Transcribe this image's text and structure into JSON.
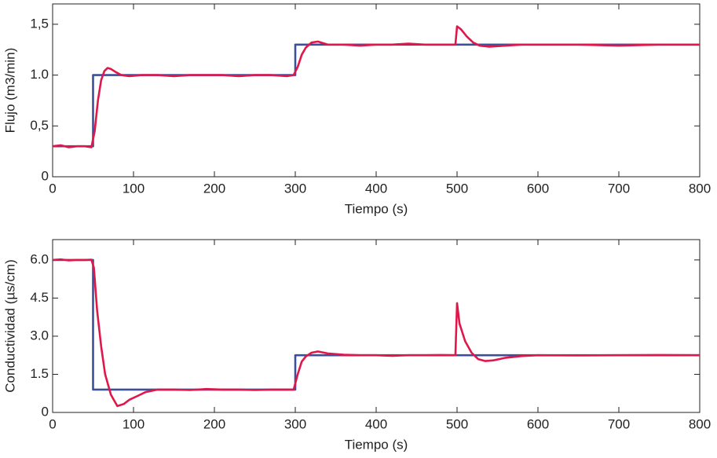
{
  "chart_data": [
    {
      "type": "line",
      "x_label": "Tiempo (s)",
      "y_label": "Flujo (m3/min)",
      "xlim": [
        0,
        800
      ],
      "ylim": [
        0,
        1.7
      ],
      "xticks": [
        0,
        100,
        200,
        300,
        400,
        500,
        600,
        700,
        800
      ],
      "yticks": [
        0,
        {
          "value": 0.5,
          "label": "0,5"
        },
        {
          "value": 1,
          "label": "1.0"
        },
        {
          "value": 1.5,
          "label": "1,5"
        }
      ],
      "series": [
        {
          "color": "#3c4f9a",
          "x": [
            0,
            50,
            50,
            300,
            300,
            800
          ],
          "values": [
            0.3,
            0.3,
            1.0,
            1.0,
            1.3,
            1.3
          ]
        },
        {
          "color": "#e0174a",
          "x": [
            0,
            10,
            20,
            30,
            40,
            48,
            52,
            56,
            60,
            64,
            68,
            72,
            78,
            85,
            95,
            110,
            130,
            150,
            170,
            190,
            210,
            230,
            250,
            270,
            290,
            298,
            303,
            308,
            313,
            320,
            328,
            340,
            360,
            380,
            400,
            420,
            440,
            460,
            480,
            498,
            500,
            505,
            512,
            520,
            528,
            540,
            560,
            580,
            600,
            650,
            700,
            750,
            800
          ],
          "values": [
            0.3,
            0.31,
            0.29,
            0.3,
            0.3,
            0.29,
            0.45,
            0.75,
            0.95,
            1.04,
            1.07,
            1.06,
            1.03,
            1.0,
            0.99,
            1.0,
            1.0,
            0.99,
            1.0,
            1.0,
            1.0,
            0.99,
            1.0,
            1.0,
            0.99,
            1.0,
            1.08,
            1.2,
            1.27,
            1.32,
            1.33,
            1.3,
            1.3,
            1.29,
            1.3,
            1.3,
            1.31,
            1.3,
            1.3,
            1.3,
            1.48,
            1.45,
            1.38,
            1.32,
            1.29,
            1.28,
            1.29,
            1.3,
            1.3,
            1.3,
            1.29,
            1.3,
            1.3
          ]
        }
      ]
    },
    {
      "type": "line",
      "x_label": "Tiempo (s)",
      "y_label": "Conductividad (µs/cm)",
      "xlim": [
        0,
        800
      ],
      "ylim": [
        0,
        6.8
      ],
      "xticks": [
        0,
        100,
        200,
        300,
        400,
        500,
        600,
        700,
        800
      ],
      "yticks": [
        0,
        1.5,
        {
          "value": 3,
          "label": "3.0"
        },
        4.5,
        {
          "value": 6,
          "label": "6.0"
        }
      ],
      "series": [
        {
          "color": "#3c4f9a",
          "x": [
            0,
            50,
            50,
            300,
            300,
            800
          ],
          "values": [
            6.0,
            6.0,
            0.9,
            0.9,
            2.25,
            2.25
          ]
        },
        {
          "color": "#e0174a",
          "x": [
            0,
            10,
            20,
            30,
            40,
            48,
            51,
            55,
            60,
            65,
            72,
            80,
            88,
            95,
            105,
            115,
            130,
            150,
            170,
            190,
            210,
            230,
            250,
            270,
            290,
            298,
            303,
            308,
            313,
            320,
            328,
            340,
            360,
            380,
            400,
            420,
            440,
            460,
            480,
            498,
            500,
            503,
            510,
            518,
            526,
            535,
            545,
            560,
            580,
            600,
            650,
            700,
            750,
            800
          ],
          "values": [
            6.0,
            6.02,
            5.98,
            6.0,
            6.0,
            6.01,
            5.7,
            4.0,
            2.6,
            1.5,
            0.7,
            0.25,
            0.33,
            0.5,
            0.65,
            0.8,
            0.9,
            0.9,
            0.88,
            0.92,
            0.9,
            0.9,
            0.88,
            0.9,
            0.9,
            0.9,
            1.5,
            2.0,
            2.2,
            2.35,
            2.4,
            2.32,
            2.27,
            2.25,
            2.25,
            2.23,
            2.25,
            2.25,
            2.26,
            2.25,
            4.3,
            3.5,
            2.8,
            2.35,
            2.1,
            2.02,
            2.05,
            2.15,
            2.22,
            2.25,
            2.24,
            2.25,
            2.26,
            2.25
          ]
        }
      ]
    }
  ]
}
